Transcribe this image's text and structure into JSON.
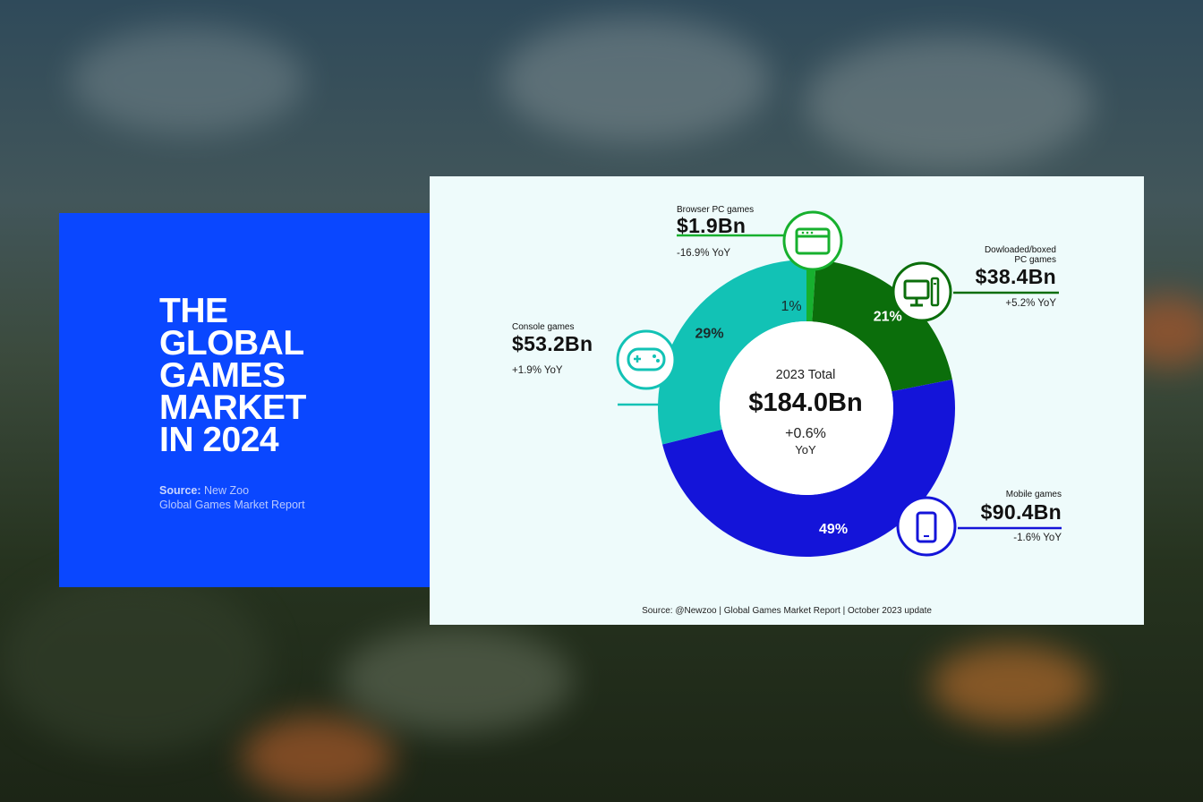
{
  "headline": [
    "THE",
    "GLOBAL",
    "GAMES",
    "MARKET",
    "IN 2024"
  ],
  "source": {
    "prefix": "Source:",
    "name": "New Zoo",
    "report": "Global Games Market Report"
  },
  "colors": {
    "title_bg": "#0a47ff",
    "panel_bg": "#eefbfb",
    "mobile": "#1414d9",
    "console": "#12c2b5",
    "downloaded": "#0b6e0b",
    "browser": "#17b02e"
  },
  "chart_data": {
    "type": "pie",
    "center": {
      "title": "2023 Total",
      "value": "$184.0Bn",
      "change": "+0.6%",
      "change_unit": "YoY"
    },
    "slices": [
      {
        "name": "Browser PC games",
        "value_label": "$1.9Bn",
        "value": 1.9,
        "percent": 1,
        "percent_label": "1%",
        "yoy": "-16.9% YoY",
        "color": "#17b02e",
        "icon": "browser-window-icon"
      },
      {
        "name": "Dowloaded/boxed PC games",
        "name_lines": [
          "Dowloaded/boxed",
          "PC games"
        ],
        "value_label": "$38.4Bn",
        "value": 38.4,
        "percent": 21,
        "percent_label": "21%",
        "yoy": "+5.2% YoY",
        "color": "#0b6e0b",
        "icon": "desktop-pc-icon"
      },
      {
        "name": "Mobile games",
        "value_label": "$90.4Bn",
        "value": 90.4,
        "percent": 49,
        "percent_label": "49%",
        "yoy": "-1.6% YoY",
        "color": "#1414d9",
        "icon": "smartphone-icon"
      },
      {
        "name": "Console games",
        "value_label": "$53.2Bn",
        "value": 53.2,
        "percent": 29,
        "percent_label": "29%",
        "yoy": "+1.9% YoY",
        "color": "#12c2b5",
        "icon": "gamepad-icon"
      }
    ],
    "footer": "Source: @Newzoo | Global Games Market Report | October 2023 update"
  }
}
